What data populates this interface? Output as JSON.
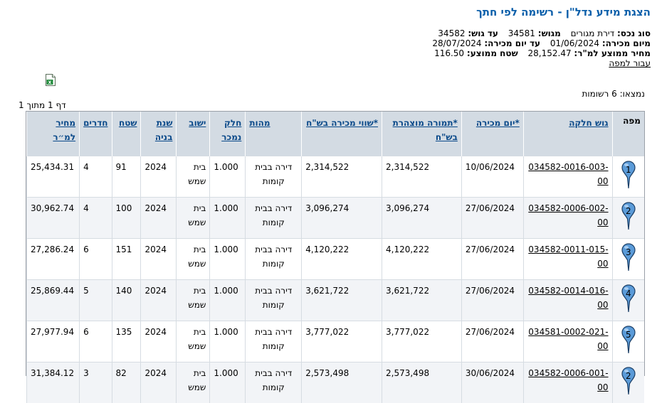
{
  "title": "הצגת מידע נדל\"ן - רשימה לפי חתך",
  "info": {
    "asset_type_label": "סוג נכס:",
    "asset_type_value": "דירת מגורים",
    "block_label": "מגוש:",
    "block_value": "34581",
    "to_block_label": "עד גוש:",
    "to_block_value": "34582",
    "from_date_label": "מיום מכירה:",
    "from_date_value": "01/06/2024",
    "to_date_label": "עד יום מכירה:",
    "to_date_value": "28/07/2024",
    "avg_price_label": "מחיר ממוצע למ\"ר:",
    "avg_price_value": "28,152.47",
    "avg_area_label": "שטח ממוצע:",
    "avg_area_value": "116.50",
    "map_link": "עבור למפה"
  },
  "export_icon": "excel-icon",
  "found_text": "נמצאו: 6 רשומות",
  "page_text": "דף 1 מתוך 1",
  "colors": {
    "title": "#0b5faa",
    "header_bg": "#d3dbe3",
    "link": "#0b4a8a",
    "pin": "#5b9bd8"
  },
  "table": {
    "headers": {
      "map": "מפה",
      "parcel": "גוש חלקה",
      "sale_day": "*יום מכירה",
      "declared": "*תמורה מוצהרת בש\"ח",
      "sale_value": "*שווי מכירה בש\"ח",
      "nature": "מהות",
      "part_sold": "חלק נמכר",
      "settlement": "ישוב",
      "build_year": "שנת בניה",
      "area": "שטח",
      "rooms": "חדרים",
      "price_sqm": "מחיר למ״ר"
    },
    "rows": [
      {
        "map": "1",
        "parcel": "034582-0016-003-00",
        "sale_day": "10/06/2024",
        "declared": "2,314,522",
        "sale_value": "2,314,522",
        "nature": "דירה בבית קומות",
        "part_sold": "1.000",
        "settlement": "בית שמש",
        "build_year": "2024",
        "area": "91",
        "rooms": "4",
        "price_sqm": "25,434.31"
      },
      {
        "map": "2",
        "parcel": "034582-0006-002-00",
        "sale_day": "27/06/2024",
        "declared": "3,096,274",
        "sale_value": "3,096,274",
        "nature": "דירה בבית קומות",
        "part_sold": "1.000",
        "settlement": "בית שמש",
        "build_year": "2024",
        "area": "100",
        "rooms": "4",
        "price_sqm": "30,962.74"
      },
      {
        "map": "3",
        "parcel": "034582-0011-015-00",
        "sale_day": "27/06/2024",
        "declared": "4,120,222",
        "sale_value": "4,120,222",
        "nature": "דירה בבית קומות",
        "part_sold": "1.000",
        "settlement": "בית שמש",
        "build_year": "2024",
        "area": "151",
        "rooms": "6",
        "price_sqm": "27,286.24"
      },
      {
        "map": "4",
        "parcel": "034582-0014-016-00",
        "sale_day": "27/06/2024",
        "declared": "3,621,722",
        "sale_value": "3,621,722",
        "nature": "דירה בבית קומות",
        "part_sold": "1.000",
        "settlement": "בית שמש",
        "build_year": "2024",
        "area": "140",
        "rooms": "5",
        "price_sqm": "25,869.44"
      },
      {
        "map": "5",
        "parcel": "034581-0002-021-00",
        "sale_day": "27/06/2024",
        "declared": "3,777,022",
        "sale_value": "3,777,022",
        "nature": "דירה בבית קומות",
        "part_sold": "1.000",
        "settlement": "בית שמש",
        "build_year": "2024",
        "area": "135",
        "rooms": "6",
        "price_sqm": "27,977.94"
      },
      {
        "map": "2",
        "parcel": "034582-0006-001-00",
        "sale_day": "30/06/2024",
        "declared": "2,573,498",
        "sale_value": "2,573,498",
        "nature": "דירה בבית קומות",
        "part_sold": "1.000",
        "settlement": "בית שמש",
        "build_year": "2024",
        "area": "82",
        "rooms": "3",
        "price_sqm": "31,384.12"
      }
    ]
  }
}
